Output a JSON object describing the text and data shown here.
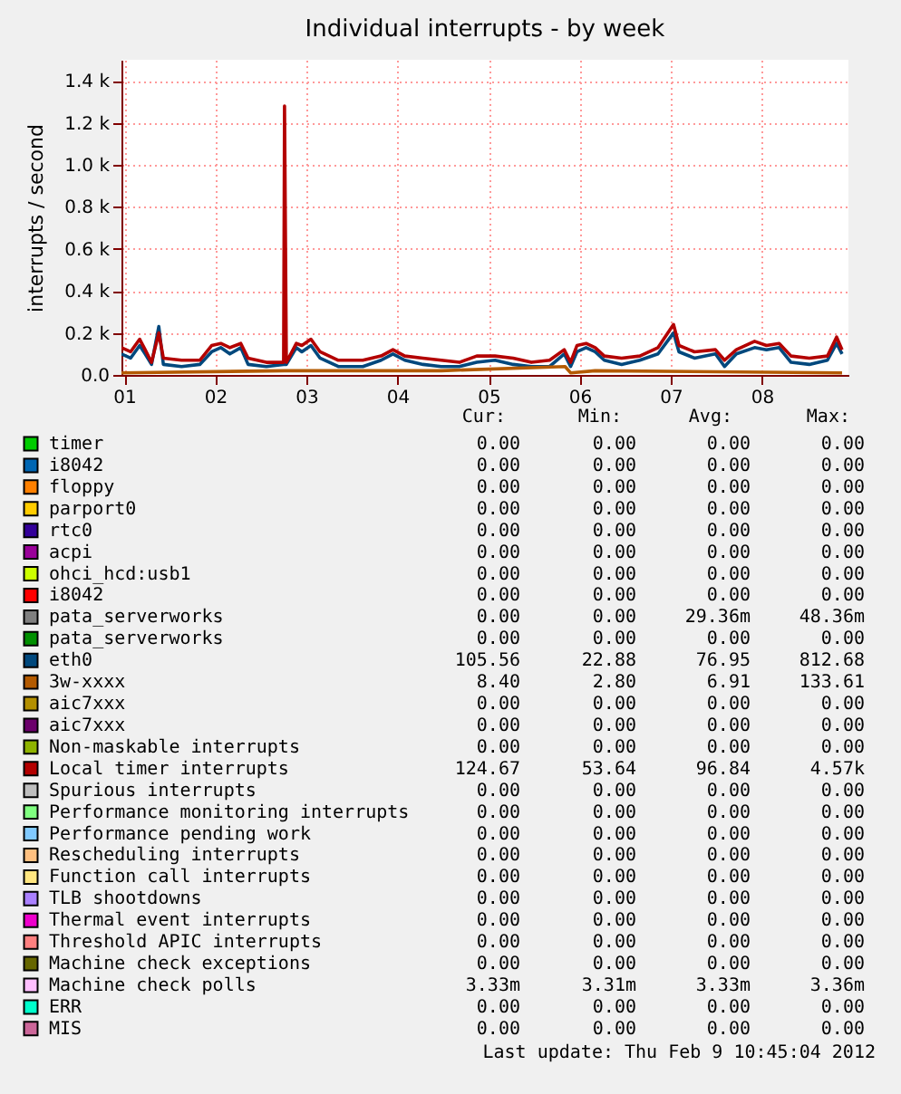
{
  "chart_data": {
    "type": "line",
    "title": "Individual interrupts - by week",
    "ylabel": "interrupts / second",
    "x": [
      0.97,
      1.07,
      1.17,
      1.23,
      1.3,
      1.38,
      1.43,
      1.63,
      1.83,
      1.96,
      2.06,
      2.16,
      2.28,
      2.36,
      2.56,
      2.75,
      2.76,
      2.78,
      2.89,
      2.95,
      3.05,
      3.15,
      3.35,
      3.62,
      3.82,
      3.95,
      4.08,
      4.28,
      4.48,
      4.68,
      4.87,
      5.07,
      5.27,
      5.47,
      5.67,
      5.83,
      5.9,
      5.97,
      6.07,
      6.17,
      6.27,
      6.46,
      6.66,
      6.86,
      7.03,
      7.09,
      7.26,
      7.49,
      7.59,
      7.72,
      7.92,
      8.05,
      8.19,
      8.32,
      8.52,
      8.72,
      8.82,
      8.88
    ],
    "xlim": [
      0.97,
      8.95
    ],
    "xticks": [
      {
        "value": 1,
        "label": "01"
      },
      {
        "value": 2,
        "label": "02"
      },
      {
        "value": 3,
        "label": "03"
      },
      {
        "value": 4,
        "label": "04"
      },
      {
        "value": 5,
        "label": "05"
      },
      {
        "value": 6,
        "label": "06"
      },
      {
        "value": 7,
        "label": "07"
      },
      {
        "value": 8,
        "label": "08"
      }
    ],
    "ylim": [
      0,
      1500
    ],
    "yticks": [
      {
        "value": 0,
        "label": "0.0"
      },
      {
        "value": 200,
        "label": "0.2 k"
      },
      {
        "value": 400,
        "label": "0.4 k"
      },
      {
        "value": 600,
        "label": "0.6 k"
      },
      {
        "value": 800,
        "label": "0.8 k"
      },
      {
        "value": 1000,
        "label": "1.0 k"
      },
      {
        "value": 1200,
        "label": "1.2 k"
      },
      {
        "value": 1400,
        "label": "1.4 k"
      }
    ],
    "grid": true,
    "legend": "bottom",
    "series": [
      {
        "name": "timer",
        "color": "#00cc00",
        "values": [
          null,
          null,
          null,
          null,
          null,
          null,
          null,
          null,
          null,
          null,
          null,
          null,
          null,
          null,
          null,
          null,
          null,
          null,
          null,
          null,
          null,
          null,
          null,
          null,
          null,
          null,
          null,
          null,
          null,
          null,
          null,
          null,
          null,
          null,
          null,
          null,
          null,
          null,
          null,
          null,
          null,
          null,
          null,
          null,
          null,
          null,
          null,
          null,
          null,
          null,
          null,
          null,
          null,
          null,
          null,
          null,
          null,
          null
        ]
      },
      {
        "name": "i8042",
        "color": "#0066b3",
        "values": [
          null,
          null,
          null,
          null,
          null,
          null,
          null,
          null,
          null,
          null,
          null,
          null,
          null,
          null,
          null,
          null,
          null,
          null,
          null,
          null,
          null,
          null,
          null,
          null,
          null,
          null,
          null,
          null,
          null,
          null,
          null,
          null,
          null,
          null,
          null,
          null,
          null,
          null,
          null,
          null,
          null,
          null,
          null,
          null,
          null,
          null,
          null,
          null,
          null,
          null,
          null,
          null,
          null,
          null,
          null,
          null,
          null,
          null
        ]
      },
      {
        "name": "floppy",
        "color": "#ff8000",
        "values": [
          null,
          null,
          null,
          null,
          null,
          null,
          null,
          null,
          null,
          null,
          null,
          null,
          null,
          null,
          null,
          null,
          null,
          null,
          null,
          null,
          null,
          null,
          null,
          null,
          null,
          null,
          null,
          null,
          null,
          null,
          null,
          null,
          null,
          null,
          null,
          null,
          null,
          null,
          null,
          null,
          null,
          null,
          null,
          null,
          null,
          null,
          null,
          null,
          null,
          null,
          null,
          null,
          null,
          null,
          null,
          null,
          null,
          null
        ]
      },
      {
        "name": "parport0",
        "color": "#ffcc00",
        "values": [
          null,
          null,
          null,
          null,
          null,
          null,
          null,
          null,
          null,
          null,
          null,
          null,
          null,
          null,
          null,
          null,
          null,
          null,
          null,
          null,
          null,
          null,
          null,
          null,
          null,
          null,
          null,
          null,
          null,
          null,
          null,
          null,
          null,
          null,
          null,
          null,
          null,
          null,
          null,
          null,
          null,
          null,
          null,
          null,
          null,
          null,
          null,
          null,
          null,
          null,
          null,
          null,
          null,
          null,
          null,
          null,
          null,
          null
        ]
      },
      {
        "name": "rtc0",
        "color": "#330099",
        "values": [
          null,
          null,
          null,
          null,
          null,
          null,
          null,
          null,
          null,
          null,
          null,
          null,
          null,
          null,
          null,
          null,
          null,
          null,
          null,
          null,
          null,
          null,
          null,
          null,
          null,
          null,
          null,
          null,
          null,
          null,
          null,
          null,
          null,
          null,
          null,
          null,
          null,
          null,
          null,
          null,
          null,
          null,
          null,
          null,
          null,
          null,
          null,
          null,
          null,
          null,
          null,
          null,
          null,
          null,
          null,
          null,
          null,
          null
        ]
      },
      {
        "name": "acpi",
        "color": "#990099",
        "values": [
          null,
          null,
          null,
          null,
          null,
          null,
          null,
          null,
          null,
          null,
          null,
          null,
          null,
          null,
          null,
          null,
          null,
          null,
          null,
          null,
          null,
          null,
          null,
          null,
          null,
          null,
          null,
          null,
          null,
          null,
          null,
          null,
          null,
          null,
          null,
          null,
          null,
          null,
          null,
          null,
          null,
          null,
          null,
          null,
          null,
          null,
          null,
          null,
          null,
          null,
          null,
          null,
          null,
          null,
          null,
          null,
          null,
          null
        ]
      },
      {
        "name": "ohci_hcd:usb1",
        "color": "#ccff00",
        "values": [
          null,
          null,
          null,
          null,
          null,
          null,
          null,
          null,
          null,
          null,
          null,
          null,
          null,
          null,
          null,
          null,
          null,
          null,
          null,
          null,
          null,
          null,
          null,
          null,
          null,
          null,
          null,
          null,
          null,
          null,
          null,
          null,
          null,
          null,
          null,
          null,
          null,
          null,
          null,
          null,
          null,
          null,
          null,
          null,
          null,
          null,
          null,
          null,
          null,
          null,
          null,
          null,
          null,
          null,
          null,
          null,
          null,
          null
        ]
      },
      {
        "name": "i8042",
        "color": "#ff0000",
        "values": [
          null,
          null,
          null,
          null,
          null,
          null,
          null,
          null,
          null,
          null,
          null,
          null,
          null,
          null,
          null,
          null,
          null,
          null,
          null,
          null,
          null,
          null,
          null,
          null,
          null,
          null,
          null,
          null,
          null,
          null,
          null,
          null,
          null,
          null,
          null,
          null,
          null,
          null,
          null,
          null,
          null,
          null,
          null,
          null,
          null,
          null,
          null,
          null,
          null,
          null,
          null,
          null,
          null,
          null,
          null,
          null,
          null,
          null
        ]
      },
      {
        "name": "pata_serverworks",
        "color": "#808080",
        "values": [
          null,
          null,
          null,
          null,
          null,
          null,
          null,
          null,
          null,
          null,
          null,
          null,
          null,
          null,
          null,
          null,
          null,
          null,
          null,
          null,
          null,
          null,
          null,
          null,
          null,
          null,
          null,
          null,
          null,
          null,
          null,
          null,
          null,
          null,
          null,
          null,
          null,
          null,
          null,
          null,
          null,
          null,
          null,
          null,
          null,
          null,
          null,
          null,
          null,
          null,
          null,
          null,
          null,
          null,
          null,
          null,
          null,
          null
        ]
      },
      {
        "name": "pata_serverworks",
        "color": "#008f00",
        "values": [
          null,
          null,
          null,
          null,
          null,
          null,
          null,
          null,
          null,
          null,
          null,
          null,
          null,
          null,
          null,
          null,
          null,
          null,
          null,
          null,
          null,
          null,
          null,
          null,
          null,
          null,
          null,
          null,
          null,
          null,
          null,
          null,
          null,
          null,
          null,
          null,
          null,
          null,
          null,
          null,
          null,
          null,
          null,
          null,
          null,
          null,
          null,
          null,
          null,
          null,
          null,
          null,
          null,
          null,
          null,
          null,
          null,
          null
        ]
      },
      {
        "name": "eth0",
        "color": "#00487d",
        "x": [
          0.97,
          1.07,
          1.17,
          1.23,
          1.3,
          1.38,
          1.43,
          1.63,
          1.83,
          1.96,
          2.06,
          2.16,
          2.28,
          2.36,
          2.56,
          2.75,
          2.78,
          2.89,
          2.95,
          3.05,
          3.15,
          3.35,
          3.62,
          3.82,
          3.95,
          4.08,
          4.28,
          4.48,
          4.68,
          4.87,
          5.07,
          5.27,
          5.47,
          5.67,
          5.83,
          5.9,
          5.97,
          6.07,
          6.17,
          6.27,
          6.46,
          6.66,
          6.86,
          7.03,
          7.09,
          7.26,
          7.49,
          7.59,
          7.72,
          7.92,
          8.05,
          8.19,
          8.32,
          8.52,
          8.72,
          8.82,
          8.88
        ],
        "values": [
          100,
          80,
          140,
          100,
          50,
          230,
          50,
          40,
          50,
          110,
          130,
          100,
          130,
          50,
          40,
          50,
          50,
          130,
          110,
          140,
          80,
          40,
          40,
          70,
          100,
          70,
          50,
          40,
          40,
          60,
          70,
          50,
          40,
          40,
          100,
          40,
          110,
          130,
          110,
          70,
          50,
          70,
          100,
          200,
          110,
          80,
          100,
          40,
          100,
          130,
          120,
          130,
          60,
          50,
          70,
          150,
          100
        ]
      },
      {
        "name": "3w-xxxx",
        "color": "#b35a00",
        "x": [
          0.97,
          2.76,
          4.48,
          5.84,
          5.9,
          6.17,
          8.88
        ],
        "values": [
          10,
          20,
          20,
          40,
          10,
          20,
          10
        ]
      },
      {
        "name": "aic7xxx",
        "color": "#b38f00",
        "values": [
          null,
          null,
          null,
          null,
          null,
          null,
          null,
          null,
          null,
          null,
          null,
          null,
          null,
          null,
          null,
          null,
          null,
          null,
          null,
          null,
          null,
          null,
          null,
          null,
          null,
          null,
          null,
          null,
          null,
          null,
          null,
          null,
          null,
          null,
          null,
          null,
          null,
          null,
          null,
          null,
          null,
          null,
          null,
          null,
          null,
          null,
          null,
          null,
          null,
          null,
          null,
          null,
          null,
          null,
          null,
          null,
          null,
          null
        ]
      },
      {
        "name": "aic7xxx",
        "color": "#6b006b",
        "values": [
          null,
          null,
          null,
          null,
          null,
          null,
          null,
          null,
          null,
          null,
          null,
          null,
          null,
          null,
          null,
          null,
          null,
          null,
          null,
          null,
          null,
          null,
          null,
          null,
          null,
          null,
          null,
          null,
          null,
          null,
          null,
          null,
          null,
          null,
          null,
          null,
          null,
          null,
          null,
          null,
          null,
          null,
          null,
          null,
          null,
          null,
          null,
          null,
          null,
          null,
          null,
          null,
          null,
          null,
          null,
          null,
          null,
          null
        ]
      },
      {
        "name": "Non-maskable interrupts",
        "color": "#8fb300",
        "values": [
          null,
          null,
          null,
          null,
          null,
          null,
          null,
          null,
          null,
          null,
          null,
          null,
          null,
          null,
          null,
          null,
          null,
          null,
          null,
          null,
          null,
          null,
          null,
          null,
          null,
          null,
          null,
          null,
          null,
          null,
          null,
          null,
          null,
          null,
          null,
          null,
          null,
          null,
          null,
          null,
          null,
          null,
          null,
          null,
          null,
          null,
          null,
          null,
          null,
          null,
          null,
          null,
          null,
          null,
          null,
          null,
          null,
          null
        ]
      },
      {
        "name": "Local timer interrupts",
        "color": "#b30000",
        "values": [
          130,
          110,
          170,
          120,
          60,
          200,
          80,
          70,
          70,
          140,
          150,
          130,
          150,
          80,
          60,
          60,
          1280,
          60,
          150,
          140,
          170,
          110,
          70,
          70,
          90,
          120,
          90,
          80,
          70,
          60,
          90,
          90,
          80,
          60,
          70,
          120,
          60,
          140,
          150,
          130,
          90,
          80,
          90,
          130,
          240,
          140,
          110,
          120,
          70,
          120,
          160,
          140,
          150,
          90,
          80,
          90,
          180,
          120
        ]
      },
      {
        "name": "Spurious interrupts",
        "color": "#bebebe",
        "values": [
          null,
          null,
          null,
          null,
          null,
          null,
          null,
          null,
          null,
          null,
          null,
          null,
          null,
          null,
          null,
          null,
          null,
          null,
          null,
          null,
          null,
          null,
          null,
          null,
          null,
          null,
          null,
          null,
          null,
          null,
          null,
          null,
          null,
          null,
          null,
          null,
          null,
          null,
          null,
          null,
          null,
          null,
          null,
          null,
          null,
          null,
          null,
          null,
          null,
          null,
          null,
          null,
          null,
          null,
          null,
          null,
          null,
          null
        ]
      },
      {
        "name": "Performance monitoring interrupts",
        "color": "#80ff80",
        "values": [
          null,
          null,
          null,
          null,
          null,
          null,
          null,
          null,
          null,
          null,
          null,
          null,
          null,
          null,
          null,
          null,
          null,
          null,
          null,
          null,
          null,
          null,
          null,
          null,
          null,
          null,
          null,
          null,
          null,
          null,
          null,
          null,
          null,
          null,
          null,
          null,
          null,
          null,
          null,
          null,
          null,
          null,
          null,
          null,
          null,
          null,
          null,
          null,
          null,
          null,
          null,
          null,
          null,
          null,
          null,
          null,
          null,
          null
        ]
      },
      {
        "name": "Performance pending work",
        "color": "#80c9ff",
        "values": [
          null,
          null,
          null,
          null,
          null,
          null,
          null,
          null,
          null,
          null,
          null,
          null,
          null,
          null,
          null,
          null,
          null,
          null,
          null,
          null,
          null,
          null,
          null,
          null,
          null,
          null,
          null,
          null,
          null,
          null,
          null,
          null,
          null,
          null,
          null,
          null,
          null,
          null,
          null,
          null,
          null,
          null,
          null,
          null,
          null,
          null,
          null,
          null,
          null,
          null,
          null,
          null,
          null,
          null,
          null,
          null,
          null,
          null
        ]
      },
      {
        "name": "Rescheduling interrupts",
        "color": "#ffc080",
        "values": [
          null,
          null,
          null,
          null,
          null,
          null,
          null,
          null,
          null,
          null,
          null,
          null,
          null,
          null,
          null,
          null,
          null,
          null,
          null,
          null,
          null,
          null,
          null,
          null,
          null,
          null,
          null,
          null,
          null,
          null,
          null,
          null,
          null,
          null,
          null,
          null,
          null,
          null,
          null,
          null,
          null,
          null,
          null,
          null,
          null,
          null,
          null,
          null,
          null,
          null,
          null,
          null,
          null,
          null,
          null,
          null,
          null,
          null
        ]
      },
      {
        "name": "Function call interrupts",
        "color": "#ffe680",
        "values": [
          null,
          null,
          null,
          null,
          null,
          null,
          null,
          null,
          null,
          null,
          null,
          null,
          null,
          null,
          null,
          null,
          null,
          null,
          null,
          null,
          null,
          null,
          null,
          null,
          null,
          null,
          null,
          null,
          null,
          null,
          null,
          null,
          null,
          null,
          null,
          null,
          null,
          null,
          null,
          null,
          null,
          null,
          null,
          null,
          null,
          null,
          null,
          null,
          null,
          null,
          null,
          null,
          null,
          null,
          null,
          null,
          null,
          null
        ]
      },
      {
        "name": "TLB shootdowns",
        "color": "#aa80ff",
        "values": [
          null,
          null,
          null,
          null,
          null,
          null,
          null,
          null,
          null,
          null,
          null,
          null,
          null,
          null,
          null,
          null,
          null,
          null,
          null,
          null,
          null,
          null,
          null,
          null,
          null,
          null,
          null,
          null,
          null,
          null,
          null,
          null,
          null,
          null,
          null,
          null,
          null,
          null,
          null,
          null,
          null,
          null,
          null,
          null,
          null,
          null,
          null,
          null,
          null,
          null,
          null,
          null,
          null,
          null,
          null,
          null,
          null,
          null
        ]
      },
      {
        "name": "Thermal event interrupts",
        "color": "#ee00cc",
        "values": [
          null,
          null,
          null,
          null,
          null,
          null,
          null,
          null,
          null,
          null,
          null,
          null,
          null,
          null,
          null,
          null,
          null,
          null,
          null,
          null,
          null,
          null,
          null,
          null,
          null,
          null,
          null,
          null,
          null,
          null,
          null,
          null,
          null,
          null,
          null,
          null,
          null,
          null,
          null,
          null,
          null,
          null,
          null,
          null,
          null,
          null,
          null,
          null,
          null,
          null,
          null,
          null,
          null,
          null,
          null,
          null,
          null,
          null
        ]
      },
      {
        "name": "Threshold APIC interrupts",
        "color": "#ff8080",
        "values": [
          null,
          null,
          null,
          null,
          null,
          null,
          null,
          null,
          null,
          null,
          null,
          null,
          null,
          null,
          null,
          null,
          null,
          null,
          null,
          null,
          null,
          null,
          null,
          null,
          null,
          null,
          null,
          null,
          null,
          null,
          null,
          null,
          null,
          null,
          null,
          null,
          null,
          null,
          null,
          null,
          null,
          null,
          null,
          null,
          null,
          null,
          null,
          null,
          null,
          null,
          null,
          null,
          null,
          null,
          null,
          null,
          null,
          null
        ]
      },
      {
        "name": "Machine check exceptions",
        "color": "#666600",
        "values": [
          null,
          null,
          null,
          null,
          null,
          null,
          null,
          null,
          null,
          null,
          null,
          null,
          null,
          null,
          null,
          null,
          null,
          null,
          null,
          null,
          null,
          null,
          null,
          null,
          null,
          null,
          null,
          null,
          null,
          null,
          null,
          null,
          null,
          null,
          null,
          null,
          null,
          null,
          null,
          null,
          null,
          null,
          null,
          null,
          null,
          null,
          null,
          null,
          null,
          null,
          null,
          null,
          null,
          null,
          null,
          null,
          null,
          null
        ]
      },
      {
        "name": "Machine check polls",
        "color": "#ffbfff",
        "values": [
          null,
          null,
          null,
          null,
          null,
          null,
          null,
          null,
          null,
          null,
          null,
          null,
          null,
          null,
          null,
          null,
          null,
          null,
          null,
          null,
          null,
          null,
          null,
          null,
          null,
          null,
          null,
          null,
          null,
          null,
          null,
          null,
          null,
          null,
          null,
          null,
          null,
          null,
          null,
          null,
          null,
          null,
          null,
          null,
          null,
          null,
          null,
          null,
          null,
          null,
          null,
          null,
          null,
          null,
          null,
          null,
          null,
          null
        ]
      },
      {
        "name": "ERR",
        "color": "#00ffcc",
        "values": [
          null,
          null,
          null,
          null,
          null,
          null,
          null,
          null,
          null,
          null,
          null,
          null,
          null,
          null,
          null,
          null,
          null,
          null,
          null,
          null,
          null,
          null,
          null,
          null,
          null,
          null,
          null,
          null,
          null,
          null,
          null,
          null,
          null,
          null,
          null,
          null,
          null,
          null,
          null,
          null,
          null,
          null,
          null,
          null,
          null,
          null,
          null,
          null,
          null,
          null,
          null,
          null,
          null,
          null,
          null,
          null,
          null,
          null
        ]
      },
      {
        "name": "MIS",
        "color": "#cc6699",
        "values": [
          null,
          null,
          null,
          null,
          null,
          null,
          null,
          null,
          null,
          null,
          null,
          null,
          null,
          null,
          null,
          null,
          null,
          null,
          null,
          null,
          null,
          null,
          null,
          null,
          null,
          null,
          null,
          null,
          null,
          null,
          null,
          null,
          null,
          null,
          null,
          null,
          null,
          null,
          null,
          null,
          null,
          null,
          null,
          null,
          null,
          null,
          null,
          null,
          null,
          null,
          null,
          null,
          null,
          null,
          null,
          null,
          null,
          null
        ]
      }
    ],
    "annotations": [
      "Cur:",
      "Min:",
      "Avg:",
      "Max:",
      "0.00",
      "0.00",
      "0.00",
      "0.00",
      "0.00",
      "0.00",
      "0.00",
      "0.00",
      "0.00",
      "0.00",
      "0.00",
      "0.00",
      "0.00",
      "0.00",
      "0.00",
      "0.00",
      "0.00",
      "0.00",
      "0.00",
      "0.00",
      "0.00",
      "0.00",
      "0.00",
      "0.00",
      "0.00",
      "0.00",
      "0.00",
      "0.00",
      "0.00",
      "0.00",
      "0.00",
      "0.00",
      "0.00",
      "0.00",
      "29.36m",
      "48.36m",
      "0.00",
      "0.00",
      "0.00",
      "0.00",
      "105.56",
      "22.88",
      "76.95",
      "812.68",
      "8.40",
      "2.80",
      "6.91",
      "133.61",
      "0.00",
      "0.00",
      "0.00",
      "0.00",
      "0.00",
      "0.00",
      "0.00",
      "0.00",
      "0.00",
      "0.00",
      "0.00",
      "0.00",
      "124.67",
      "53.64",
      "96.84",
      "4.57k",
      "0.00",
      "0.00",
      "0.00",
      "0.00",
      "0.00",
      "0.00",
      "0.00",
      "0.00",
      "0.00",
      "0.00",
      "0.00",
      "0.00",
      "0.00",
      "0.00",
      "0.00",
      "0.00",
      "0.00",
      "0.00",
      "0.00",
      "0.00",
      "0.00",
      "0.00",
      "0.00",
      "0.00",
      "0.00",
      "0.00",
      "0.00",
      "0.00",
      "0.00",
      "0.00",
      "0.00",
      "0.00",
      "0.00",
      "0.00",
      "0.00",
      "0.00",
      "3.33m",
      "3.31m",
      "3.33m",
      "3.36m",
      "0.00",
      "0.00",
      "0.00",
      "0.00",
      "0.00",
      "0.00",
      "0.00",
      "0.00",
      "Last update:  Thu Feb  9 10:45:04 2012"
    ]
  }
}
